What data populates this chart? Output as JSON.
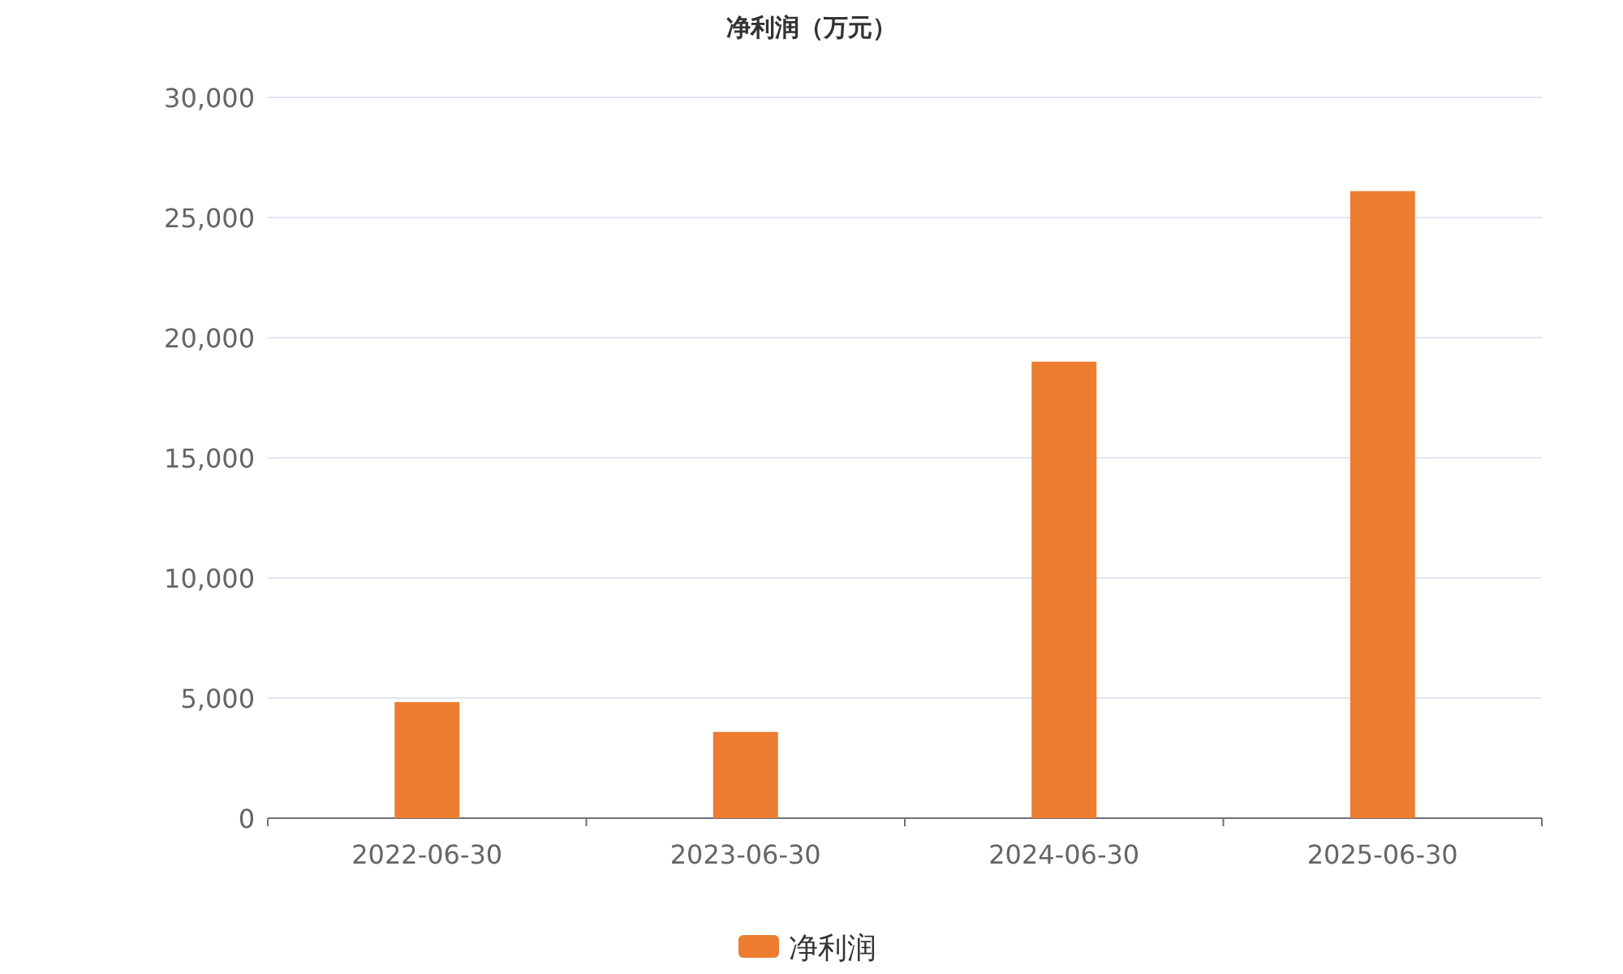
{
  "chart_data": {
    "type": "bar",
    "title": "净利润（万元）",
    "categories": [
      "2022-06-30",
      "2023-06-30",
      "2024-06-30",
      "2025-06-30"
    ],
    "series": [
      {
        "name": "净利润",
        "color": "#ed7d31",
        "values": [
          4830,
          3590,
          19000,
          26100
        ]
      }
    ],
    "ylim": [
      0,
      30000
    ],
    "yticks": [
      0,
      {
        "value": 5000,
        "label": "5,000"
      },
      {
        "value": 10000,
        "label": "10,000"
      },
      {
        "value": 15000,
        "label": "15,000"
      },
      {
        "value": 20000,
        "label": "20,000"
      },
      {
        "value": 25000,
        "label": "25,000"
      },
      {
        "value": 30000,
        "label": "30,000"
      }
    ],
    "grid": "y",
    "legend": "bottom"
  }
}
